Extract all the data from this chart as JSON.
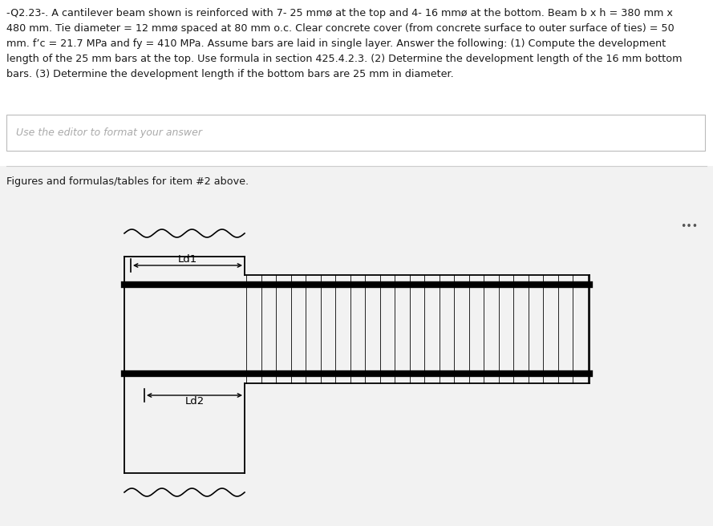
{
  "title_text": "-Q2.23-. A cantilever beam shown is reinforced with 7- 25 mmø at the top and 4- 16 mmø at the bottom. Beam b x h = 380 mm x\n480 mm. Tie diameter = 12 mmø spaced at 80 mm o.c. Clear concrete cover (from concrete surface to outer surface of ties) = 50\nmm. f’c = 21.7 MPa and fy = 410 MPa. Assume bars are laid in single layer. Answer the following: (1) Compute the development\nlength of the 25 mm bars at the top. Use formula in section 425.4.2.3. (2) Determine the development length of the 16 mm bottom\nbars. (3) Determine the development length if the bottom bars are 25 mm in diameter.",
  "editor_text": "Use the editor to format your answer",
  "figures_text": "Figures and formulas/tables for item #2 above.",
  "ld1_label": "Ld1",
  "ld2_label": "Ld2",
  "bg_color": "#f2f2f2",
  "white": "#ffffff",
  "black": "#000000",
  "gray_border": "#cccccc",
  "text_color": "#1a1a1a",
  "light_gray": "#eeeeee",
  "dots_color": "#555555"
}
